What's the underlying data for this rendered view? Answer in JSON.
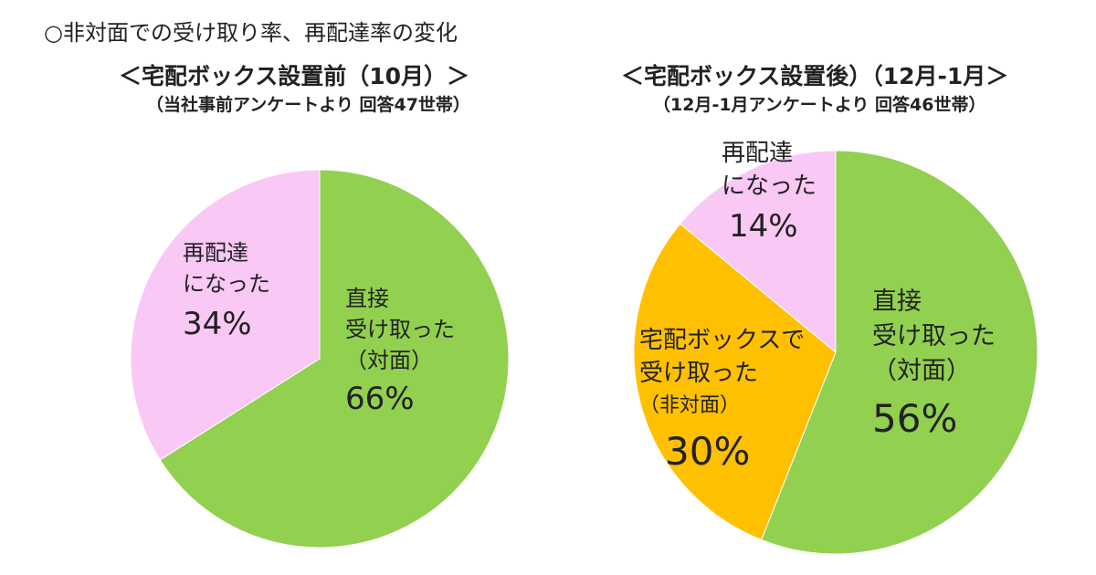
{
  "chart_data": [
    {
      "type": "pie",
      "title": "＜宅配ボックス設置前（10月）＞",
      "subtitle": "（当社事前アンケートより 回答47世帯）",
      "slices": [
        {
          "label": "直接受け取った（対面）",
          "label_lines": [
            "直接",
            "受け取った",
            "（対面）"
          ],
          "value": 66,
          "display": "66%",
          "color": "#92d050"
        },
        {
          "label": "再配達になった",
          "label_lines": [
            "再配達",
            "になった"
          ],
          "value": 34,
          "display": "34%",
          "color": "#f9c8f5"
        }
      ]
    },
    {
      "type": "pie",
      "title": "＜宅配ボックス設置後）（12月-1月＞",
      "subtitle": "（12月-1月アンケートより 回答46世帯）",
      "slices": [
        {
          "label": "直接受け取った（対面）",
          "label_lines": [
            "直接",
            "受け取った",
            "（対面）"
          ],
          "value": 56,
          "display": "56%",
          "color": "#92d050"
        },
        {
          "label": "宅配ボックスで受け取った（非対面）",
          "label_lines": [
            "宅配ボックスで",
            "受け取った",
            "（非対面）"
          ],
          "value": 30,
          "display": "30%",
          "color": "#ffc000"
        },
        {
          "label": "再配達になった",
          "label_lines": [
            "再配達",
            "になった"
          ],
          "value": 14,
          "display": "14%",
          "color": "#f9c8f5"
        }
      ]
    }
  ],
  "heading": "○非対面での受け取り率、再配達率の変化"
}
